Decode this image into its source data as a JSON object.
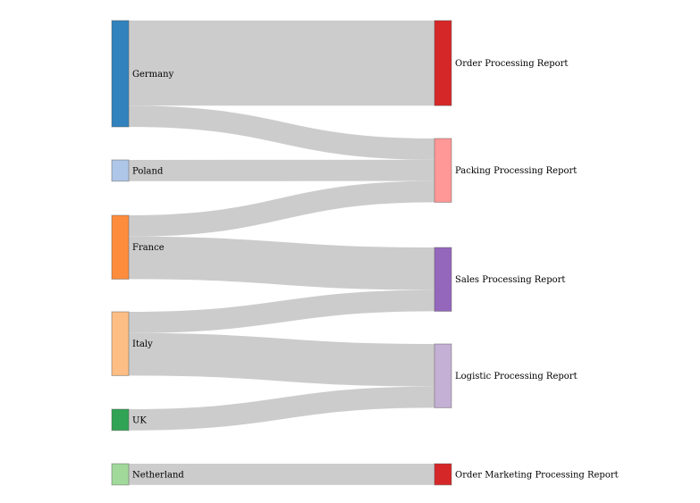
{
  "diagram": {
    "type": "sankey",
    "sources": [
      {
        "id": "germany",
        "label": "Germany",
        "color": "#3182bd"
      },
      {
        "id": "poland",
        "label": "Poland",
        "color": "#aec7e8"
      },
      {
        "id": "france",
        "label": "France",
        "color": "#fd8d3c"
      },
      {
        "id": "italy",
        "label": "Italy",
        "color": "#fdbe85"
      },
      {
        "id": "uk",
        "label": "UK",
        "color": "#31a354"
      },
      {
        "id": "netherland",
        "label": "Netherland",
        "color": "#a1d99b"
      }
    ],
    "targets": [
      {
        "id": "order",
        "label": "Order Processing Report",
        "color": "#d62728"
      },
      {
        "id": "packing",
        "label": "Packing Processing Report",
        "color": "#ff9896"
      },
      {
        "id": "sales",
        "label": "Sales Processing Report",
        "color": "#9467bd"
      },
      {
        "id": "logistic",
        "label": "Logistic Processing Report",
        "color": "#c5b0d5"
      },
      {
        "id": "marketing",
        "label": "Order Marketing Processing Report",
        "color": "#d62728"
      }
    ],
    "links": [
      {
        "source": "germany",
        "target": "order",
        "value": 4
      },
      {
        "source": "germany",
        "target": "packing",
        "value": 1
      },
      {
        "source": "poland",
        "target": "packing",
        "value": 1
      },
      {
        "source": "france",
        "target": "packing",
        "value": 1
      },
      {
        "source": "france",
        "target": "sales",
        "value": 2
      },
      {
        "source": "italy",
        "target": "sales",
        "value": 1
      },
      {
        "source": "italy",
        "target": "logistic",
        "value": 2
      },
      {
        "source": "uk",
        "target": "logistic",
        "value": 1
      },
      {
        "source": "netherland",
        "target": "marketing",
        "value": 1
      }
    ],
    "link_color": "#cccccc"
  }
}
